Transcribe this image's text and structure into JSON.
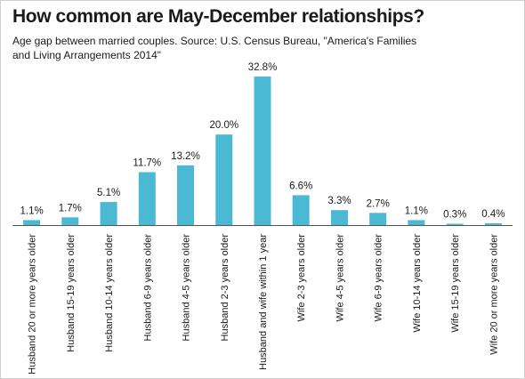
{
  "chart_data": {
    "type": "bar",
    "title": "How common are May-December relationships?",
    "subtitle": "Age gap between married couples. Source: U.S. Census Bureau, \"America's Families and Living Arrangements 2014\"",
    "categories": [
      "Husband 20 or more years older",
      "Husband 15-19 years older",
      "Husband 10-14 years older",
      "Husband 6-9 years older",
      "Husband 4-5 years older",
      "Husband 2-3 years older",
      "Husband and wife within 1 year",
      "Wife 2-3 years older",
      "Wife 4-5 years older",
      "Wife 6-9 years older",
      "Wife 10-14 years older",
      "Wife 15-19 years older",
      "Wife 20 or more years older"
    ],
    "values": [
      1.1,
      1.7,
      5.1,
      11.7,
      13.2,
      20.0,
      32.8,
      6.6,
      3.3,
      2.7,
      1.1,
      0.3,
      0.4
    ],
    "data_labels": [
      "1.1%",
      "1.7%",
      "5.1%",
      "11.7%",
      "13.2%",
      "20.0%",
      "32.8%",
      "6.6%",
      "3.3%",
      "2.7%",
      "1.1%",
      "0.3%",
      "0.4%"
    ],
    "xlabel": "",
    "ylabel": "",
    "ylim": [
      0,
      34
    ],
    "grid": false,
    "legend": "none",
    "bar_color": "#4bb8d4",
    "axis_color": "#555555"
  }
}
